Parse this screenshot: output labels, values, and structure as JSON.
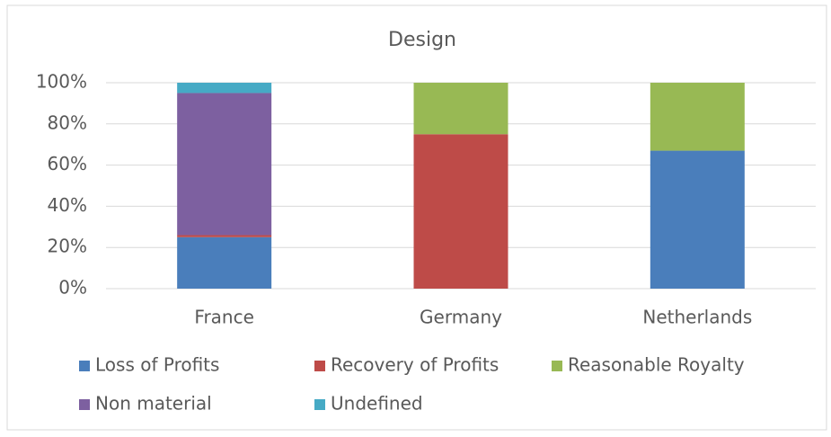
{
  "chart_data": {
    "type": "stacked_bar",
    "title": "Design",
    "categories": [
      "France",
      "Germany",
      "Netherlands"
    ],
    "series": [
      {
        "name": "Loss of Profits",
        "color": "#4a7ebb",
        "values": [
          25,
          0,
          67
        ]
      },
      {
        "name": "Recovery of Profits",
        "color": "#be4b48",
        "values": [
          1,
          75,
          0
        ]
      },
      {
        "name": "Reasonable Royalty",
        "color": "#98b954",
        "values": [
          0,
          25,
          33
        ]
      },
      {
        "name": "Non material",
        "color": "#7d60a0",
        "values": [
          69,
          0,
          0
        ]
      },
      {
        "name": "Undefined",
        "color": "#46aac5",
        "values": [
          5,
          0,
          0
        ]
      }
    ],
    "ylim": [
      0,
      100
    ],
    "yticks": [
      {
        "value": 0,
        "label": "0%"
      },
      {
        "value": 20,
        "label": "20%"
      },
      {
        "value": 40,
        "label": "40%"
      },
      {
        "value": 60,
        "label": "60%"
      },
      {
        "value": 80,
        "label": "80%"
      },
      {
        "value": 100,
        "label": "100%"
      }
    ],
    "grid": true,
    "legend": "bottom"
  }
}
